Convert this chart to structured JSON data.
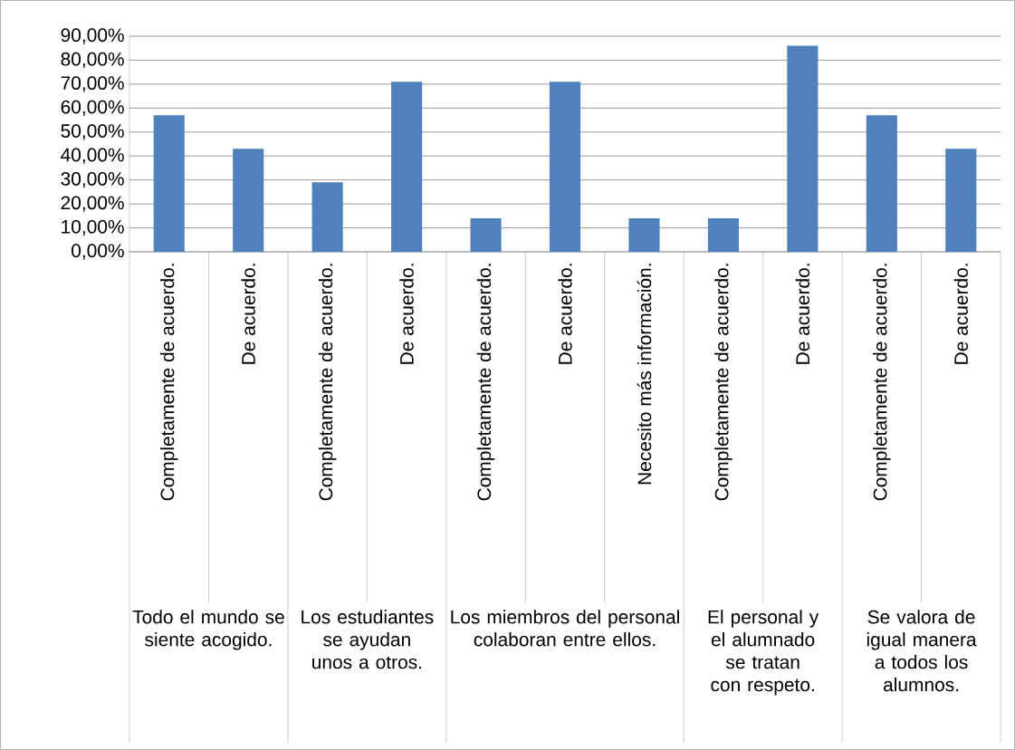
{
  "chart_data": {
    "type": "bar",
    "categories": [
      "Completamente de acuerdo.",
      "De acuerdo.",
      "Completamente de acuerdo.",
      "De acuerdo.",
      "Completamente de acuerdo.",
      "De acuerdo.",
      "Necesito más información.",
      "Completamente de acuerdo.",
      "De acuerdo.",
      "Completamente de acuerdo.",
      "De acuerdo."
    ],
    "values": [
      57,
      43,
      29,
      71,
      14,
      71,
      14,
      14,
      86,
      57,
      43
    ],
    "color": "#4f81bd",
    "ylim": [
      0,
      90
    ],
    "yticks": [
      {
        "value": 0,
        "label": "0,00%"
      },
      {
        "value": 10,
        "label": "10,00%"
      },
      {
        "value": 20,
        "label": "20,00%"
      },
      {
        "value": 30,
        "label": "30,00%"
      },
      {
        "value": 40,
        "label": "40,00%"
      },
      {
        "value": 50,
        "label": "50,00%"
      },
      {
        "value": 60,
        "label": "60,00%"
      },
      {
        "value": 70,
        "label": "70,00%"
      },
      {
        "value": 80,
        "label": "80,00%"
      },
      {
        "value": 90,
        "label": "90,00%"
      }
    ],
    "grid": "y",
    "annotations": [
      "Todo el mundo se siente acogido.",
      "Los estudiantes se ayudan unos a otros.",
      "Los miembros del personal colaboran entre ellos.",
      "El personal y el alumnado se tratan con respeto.",
      "Se valora de igual manera a todos los alumnos."
    ]
  }
}
